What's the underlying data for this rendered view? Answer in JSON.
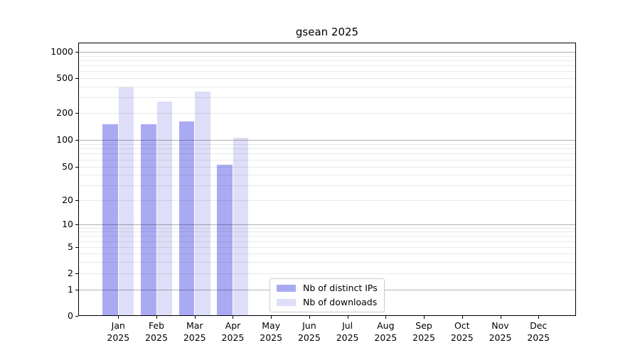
{
  "title": "gsean 2025",
  "colors": {
    "distinct_ips_bar": "#aaaaf2",
    "downloads_bar": "#dedef8",
    "major_grid": "#b0b0b0",
    "minor_grid": "#e9e9e9",
    "axis": "#000000",
    "legend_border": "#cccccc",
    "background": "#ffffff"
  },
  "legend": {
    "items": [
      {
        "label": "Nb of distinct IPs"
      },
      {
        "label": "Nb of downloads"
      }
    ]
  },
  "chart_data": {
    "type": "bar",
    "title": "gsean 2025",
    "categories": [
      "Jan 2025",
      "Feb 2025",
      "Mar 2025",
      "Apr 2025",
      "May 2025",
      "Jun 2025",
      "Jul 2025",
      "Aug 2025",
      "Sep 2025",
      "Oct 2025",
      "Nov 2025",
      "Dec 2025"
    ],
    "months": [
      "Jan",
      "Feb",
      "Mar",
      "Apr",
      "May",
      "Jun",
      "Jul",
      "Aug",
      "Sep",
      "Oct",
      "Nov",
      "Dec"
    ],
    "year": "2025",
    "series": [
      {
        "name": "Nb of distinct IPs",
        "color": "#aaaaf2",
        "values": [
          150,
          150,
          162,
          53,
          0,
          0,
          0,
          0,
          0,
          0,
          0,
          0
        ]
      },
      {
        "name": "Nb of downloads",
        "color": "#dedef8",
        "values": [
          390,
          270,
          350,
          105,
          0,
          0,
          0,
          0,
          0,
          0,
          0,
          0
        ]
      }
    ],
    "xlabel": "",
    "ylabel": "",
    "yscale": "log-like (0,1,2,5,10,20,50,100,200,500,1000)",
    "yticks": [
      0,
      1,
      2,
      5,
      10,
      20,
      50,
      100,
      200,
      500,
      1000
    ],
    "ylim": [
      0,
      1300
    ],
    "grid": true,
    "legend_position": "lower-center"
  }
}
